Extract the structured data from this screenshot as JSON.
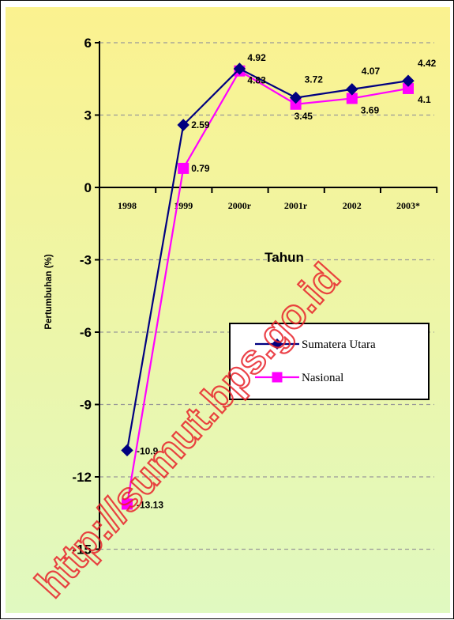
{
  "chart_data": {
    "type": "line",
    "categories": [
      "1998",
      "1999",
      "2000r",
      "2001r",
      "2002",
      "2003*"
    ],
    "series": [
      {
        "name": "Sumatera Utara",
        "values": [
          -10.9,
          2.59,
          4.92,
          3.72,
          4.07,
          4.42
        ],
        "color": "#000080",
        "marker": "diamond"
      },
      {
        "name": "Nasional",
        "values": [
          -13.13,
          0.79,
          4.83,
          3.45,
          3.69,
          4.1
        ],
        "color": "#ff00ff",
        "marker": "square"
      }
    ],
    "data_labels": {
      "Sumatera Utara": [
        "-10.9",
        "2.59",
        "4.92",
        "3.72",
        "4.07",
        "4.42"
      ],
      "Nasional": [
        "-13.13",
        "0.79",
        "4.83",
        "3.45",
        "3.69",
        "4.1"
      ]
    },
    "y_ticks": [
      "6",
      "3",
      "0",
      "-3",
      "-6",
      "-9",
      "-12",
      "-15"
    ],
    "ylim": [
      -15,
      6
    ],
    "xlabel": "Tahun",
    "ylabel": "Pertumbuhan (%)",
    "grid": true,
    "legend_position": "right"
  },
  "watermark": "http://sumut.bps.go.id",
  "colors": {
    "background_top": "#fbf28f",
    "background_bottom": "#e0f9c0"
  }
}
